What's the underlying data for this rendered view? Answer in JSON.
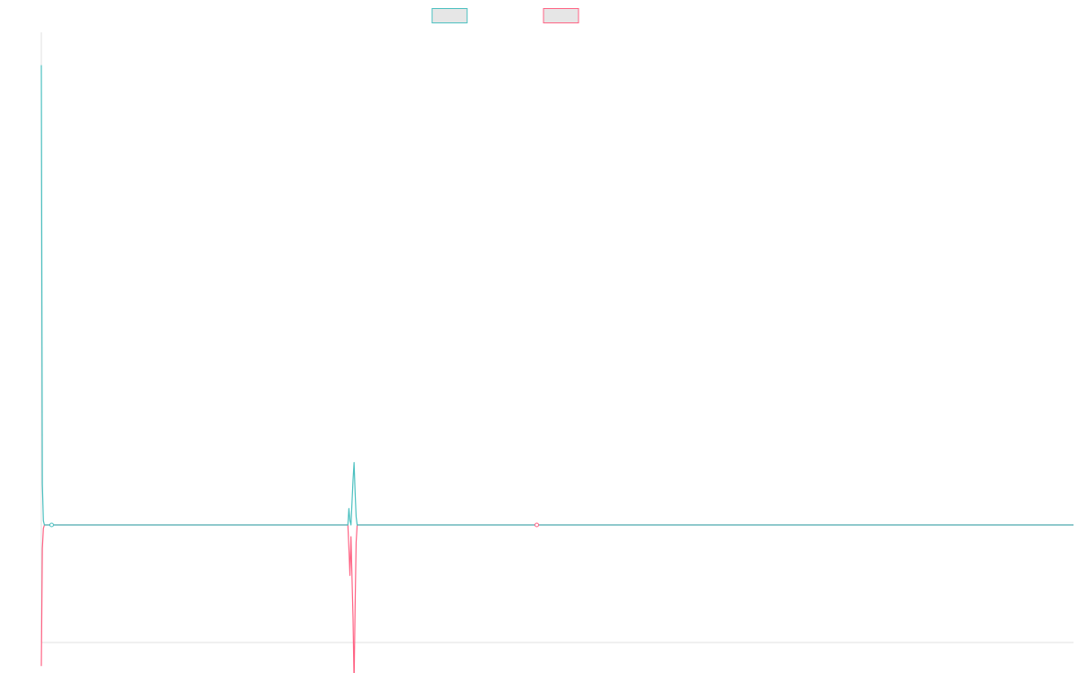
{
  "chart_data": {
    "type": "line",
    "title": "",
    "xlabel": "",
    "ylabel": "",
    "grid": false,
    "legend": {
      "placement": "top-center",
      "labels_visible": false
    },
    "colors": {
      "series_1": "#4bc0c0",
      "series_2": "#ff6384",
      "legend_fill": "#e6e6e6",
      "axis": "#e0e0e0"
    },
    "ylim": [
      -100,
      600
    ],
    "xlim": [
      0,
      1000
    ],
    "series": [
      {
        "color": "#4bc0c0",
        "points": [
          [
            0,
            560
          ],
          [
            1,
            50
          ],
          [
            2,
            5
          ],
          [
            3,
            0
          ],
          [
            4,
            0
          ],
          [
            6,
            0
          ],
          [
            10,
            0
          ],
          [
            295,
            0
          ],
          [
            297,
            0
          ],
          [
            298,
            20
          ],
          [
            299,
            5
          ],
          [
            300,
            0
          ],
          [
            302,
            55
          ],
          [
            303,
            76
          ],
          [
            304,
            40
          ],
          [
            305,
            10
          ],
          [
            306,
            0
          ],
          [
            307,
            0
          ],
          [
            450,
            0
          ],
          [
            480,
            0
          ],
          [
            1000,
            0
          ]
        ]
      },
      {
        "color": "#ff6384",
        "points": [
          [
            0,
            -120
          ],
          [
            1,
            -20
          ],
          [
            2,
            -3
          ],
          [
            3,
            0
          ],
          [
            4,
            0
          ],
          [
            6,
            0
          ],
          [
            10,
            0
          ],
          [
            295,
            0
          ],
          [
            297,
            0
          ],
          [
            298,
            -20
          ],
          [
            299,
            -43
          ],
          [
            300,
            -10
          ],
          [
            302,
            -80
          ],
          [
            303,
            -135
          ],
          [
            304,
            -70
          ],
          [
            305,
            -15
          ],
          [
            306,
            0
          ],
          [
            307,
            0
          ],
          [
            450,
            0
          ],
          [
            480,
            0
          ],
          [
            1000,
            0
          ]
        ]
      }
    ],
    "markers": [
      {
        "series": 0,
        "x": 10,
        "y": 0
      },
      {
        "series": 1,
        "x": 480,
        "y": 0
      }
    ]
  }
}
